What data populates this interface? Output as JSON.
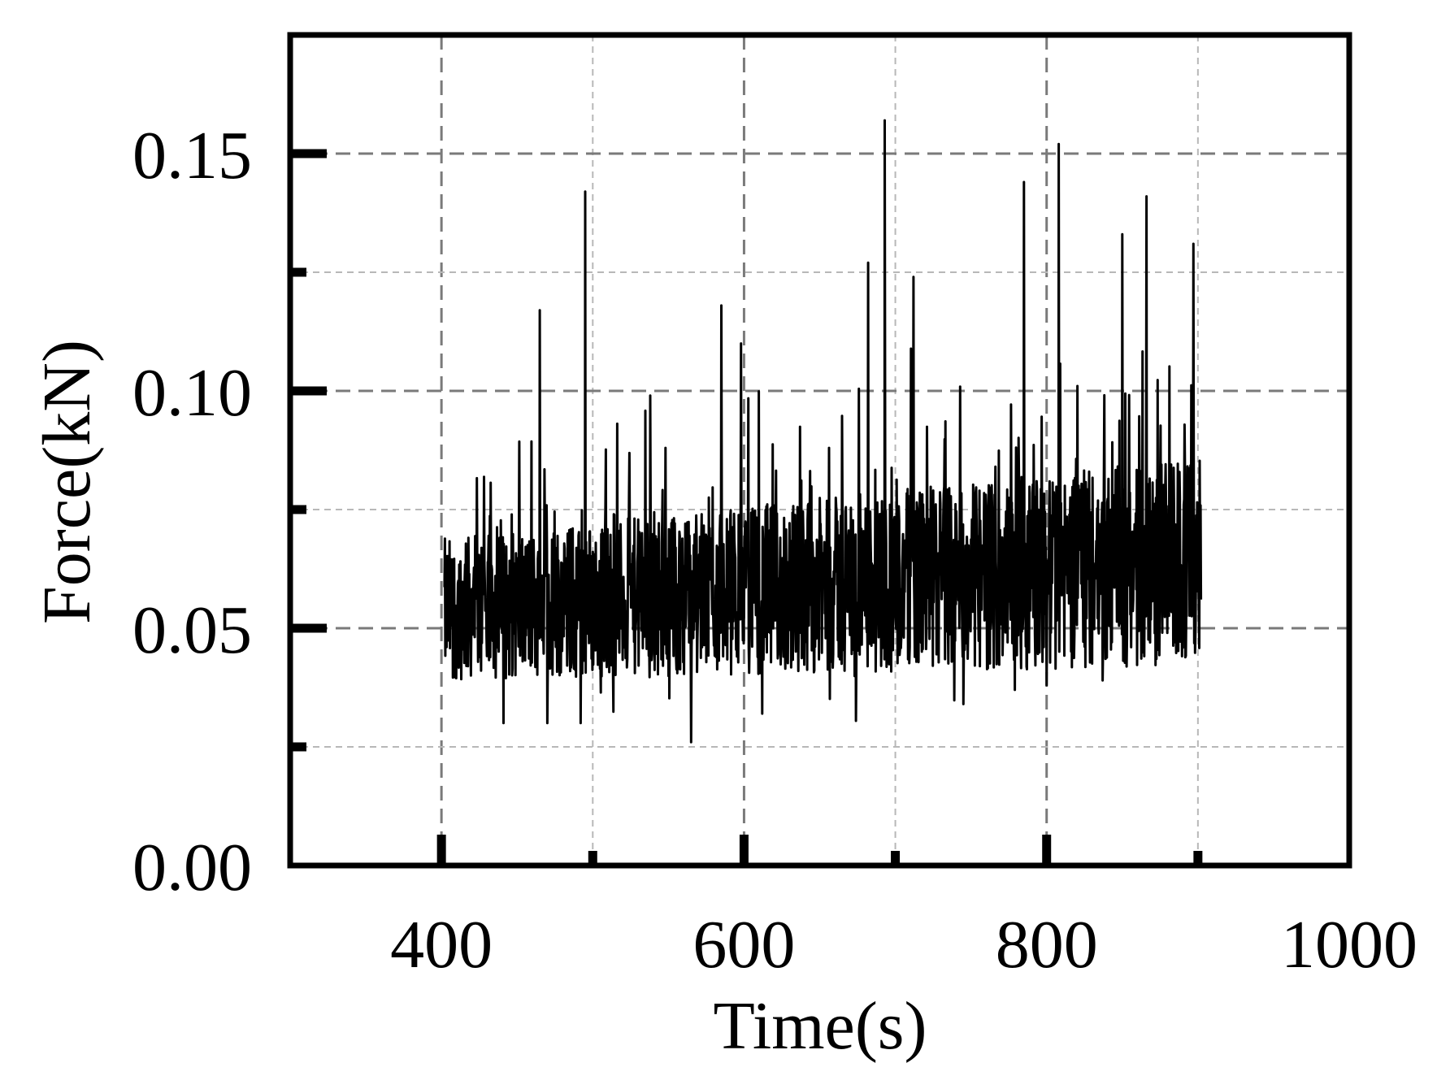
{
  "chart_data": {
    "type": "line",
    "title": "",
    "xlabel": "Time(s)",
    "ylabel": "Force(kN)",
    "xlim": [
      300,
      1000
    ],
    "ylim": [
      0,
      0.175
    ],
    "x_ticks": [
      400,
      600,
      800,
      1000
    ],
    "x_tick_labels": [
      "400",
      "600",
      "800",
      "1000"
    ],
    "x_minor_ticks": [
      500,
      700,
      900
    ],
    "y_ticks": [
      0.0,
      0.05,
      0.1,
      0.15
    ],
    "y_tick_labels": [
      "0.00",
      "0.05",
      "0.10",
      "0.15"
    ],
    "y_minor_ticks": [
      0.025,
      0.075,
      0.125
    ],
    "grid": true,
    "legend": "none",
    "series": [
      {
        "color": "#000000",
        "x_range": [
          402,
          902
        ],
        "trend_start": 0.054,
        "trend_end": 0.064,
        "noise_band": [
          0.015,
          0.022
        ],
        "peaks": [
          {
            "x": 465,
            "y": 0.117
          },
          {
            "x": 495,
            "y": 0.142
          },
          {
            "x": 538,
            "y": 0.099
          },
          {
            "x": 585,
            "y": 0.118
          },
          {
            "x": 598,
            "y": 0.11
          },
          {
            "x": 682,
            "y": 0.127
          },
          {
            "x": 693,
            "y": 0.157
          },
          {
            "x": 712,
            "y": 0.124
          },
          {
            "x": 785,
            "y": 0.144
          },
          {
            "x": 808,
            "y": 0.152
          },
          {
            "x": 850,
            "y": 0.133
          },
          {
            "x": 866,
            "y": 0.141
          },
          {
            "x": 897,
            "y": 0.131
          }
        ],
        "troughs": [
          {
            "x": 441,
            "y": 0.03
          },
          {
            "x": 470,
            "y": 0.03
          },
          {
            "x": 492,
            "y": 0.03
          },
          {
            "x": 565,
            "y": 0.026
          },
          {
            "x": 612,
            "y": 0.032
          },
          {
            "x": 745,
            "y": 0.034
          },
          {
            "x": 779,
            "y": 0.037
          },
          {
            "x": 800,
            "y": 0.038
          },
          {
            "x": 837,
            "y": 0.039
          }
        ]
      }
    ]
  }
}
